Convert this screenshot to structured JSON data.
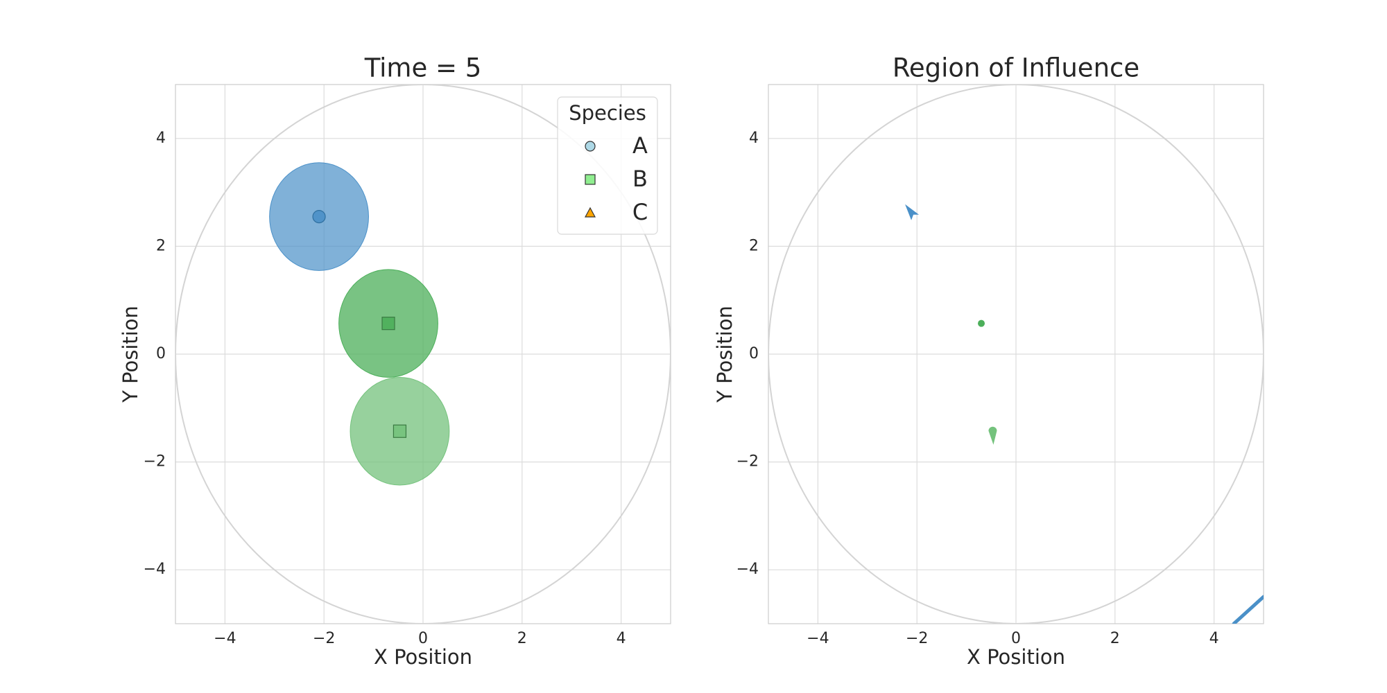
{
  "chart_data": [
    {
      "type": "scatter",
      "title": "Time = 5",
      "xlabel": "X Position",
      "ylabel": "Y Position",
      "xlim": [
        -5,
        5
      ],
      "ylim": [
        -5,
        5
      ],
      "xticks": [
        -4,
        -2,
        0,
        2,
        4
      ],
      "yticks": [
        -4,
        -2,
        0,
        2,
        4
      ],
      "grid": true,
      "boundary_circle": {
        "cx": 0,
        "cy": 0,
        "r": 5,
        "color": "#d4d4d4"
      },
      "legend": {
        "title": "Species",
        "placement": "top-right",
        "entries": [
          {
            "label": "A",
            "marker": "circle",
            "color": "#add8e6"
          },
          {
            "label": "B",
            "marker": "square",
            "color": "#90ee90"
          },
          {
            "label": "C",
            "marker": "triangle",
            "color": "#ffa500"
          }
        ]
      },
      "points": [
        {
          "species": "A",
          "marker": "circle",
          "x": -2.1,
          "y": 2.55,
          "influence_radius": 1.0,
          "color": "#4a90c8",
          "opacity": 0.7
        },
        {
          "species": "B",
          "marker": "square",
          "x": -0.7,
          "y": 0.57,
          "influence_radius": 1.0,
          "color": "#4caf5a",
          "opacity": 0.75
        },
        {
          "species": "B",
          "marker": "square",
          "x": -0.47,
          "y": -1.43,
          "influence_radius": 1.0,
          "color": "#74c27c",
          "opacity": 0.75
        }
      ]
    },
    {
      "type": "scatter",
      "title": "Region of Influence",
      "xlabel": "X Position",
      "ylabel": "Y Position",
      "xlim": [
        -5,
        5
      ],
      "ylim": [
        -5,
        5
      ],
      "xticks": [
        -4,
        -2,
        0,
        2,
        4
      ],
      "yticks": [
        -4,
        -2,
        0,
        2,
        4
      ],
      "grid": true,
      "boundary_circle": {
        "cx": 0,
        "cy": 0,
        "r": 5,
        "color": "#d4d4d4"
      },
      "points": [
        {
          "x": -2.1,
          "y": 2.6,
          "color": "#4a90c8"
        },
        {
          "x": -0.7,
          "y": 0.57,
          "color": "#4caf5a"
        },
        {
          "x": -0.47,
          "y": -1.5,
          "color": "#74c27c"
        }
      ],
      "edge_line": {
        "x": [
          4.4,
          5.0
        ],
        "y": [
          -5.0,
          -4.5
        ],
        "color": "#4a90c8"
      }
    }
  ]
}
